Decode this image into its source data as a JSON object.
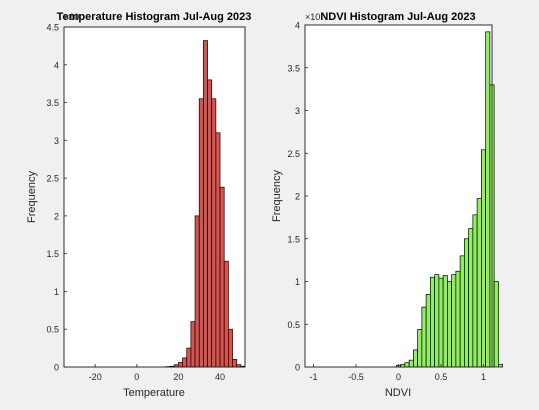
{
  "figure": {
    "background": "#f0f0f0"
  },
  "chart_data": [
    {
      "type": "bar",
      "title": "Temperature Histogram Jul-Aug 2023",
      "xlabel": "Temperature",
      "ylabel": "Frequency",
      "y_exponent_label": "×10",
      "bar_color": "#d9534f",
      "xlim": [
        -35,
        52
      ],
      "ylim": [
        0,
        4.5
      ],
      "xticks": [
        -20,
        0,
        20,
        40
      ],
      "xtick_labels": [
        "-20",
        "0",
        "20",
        "40"
      ],
      "yticks": [
        0,
        0.5,
        1,
        1.5,
        2,
        2.5,
        3,
        3.5,
        4,
        4.5
      ],
      "ytick_labels": [
        "0",
        "0.5",
        "1",
        "1.5",
        "2",
        "2.5",
        "3",
        "3.5",
        "4",
        "4.5"
      ],
      "bin_edges_start": 14,
      "bin_width": 2,
      "values": [
        0.005,
        0.01,
        0.03,
        0.06,
        0.12,
        0.25,
        0.6,
        2.0,
        3.55,
        4.32,
        3.8,
        3.55,
        3.1,
        2.38,
        1.4,
        0.5,
        0.1,
        0.03,
        0.01
      ],
      "grid": false,
      "legend": false
    },
    {
      "type": "bar",
      "title": "NDVI Histogram Jul-Aug 2023",
      "xlabel": "NDVI",
      "ylabel": "Frequency",
      "y_exponent_label": "×10",
      "bar_color": "#90ee60",
      "xlim": [
        -1.1,
        1.1
      ],
      "ylim": [
        0,
        4
      ],
      "xticks": [
        -1,
        -0.5,
        0,
        0.5,
        1
      ],
      "xtick_labels": [
        "-1",
        "-0.5",
        "0",
        "0.5",
        "1"
      ],
      "yticks": [
        0,
        0.5,
        1,
        1.5,
        2,
        2.5,
        3,
        3.5,
        4
      ],
      "ytick_labels": [
        "0",
        "0.5",
        "1",
        "1.5",
        "2",
        "2.5",
        "3",
        "3.5",
        "4"
      ],
      "bin_edges_start": -0.025,
      "bin_width": 0.05,
      "values": [
        0.02,
        0.03,
        0.05,
        0.08,
        0.2,
        0.44,
        0.7,
        0.85,
        1.05,
        1.08,
        1.04,
        1.07,
        1.0,
        1.08,
        1.12,
        1.3,
        1.5,
        1.62,
        1.78,
        1.97,
        2.54,
        3.92,
        3.3,
        1.0,
        0.03
      ],
      "grid": false,
      "legend": false
    }
  ]
}
